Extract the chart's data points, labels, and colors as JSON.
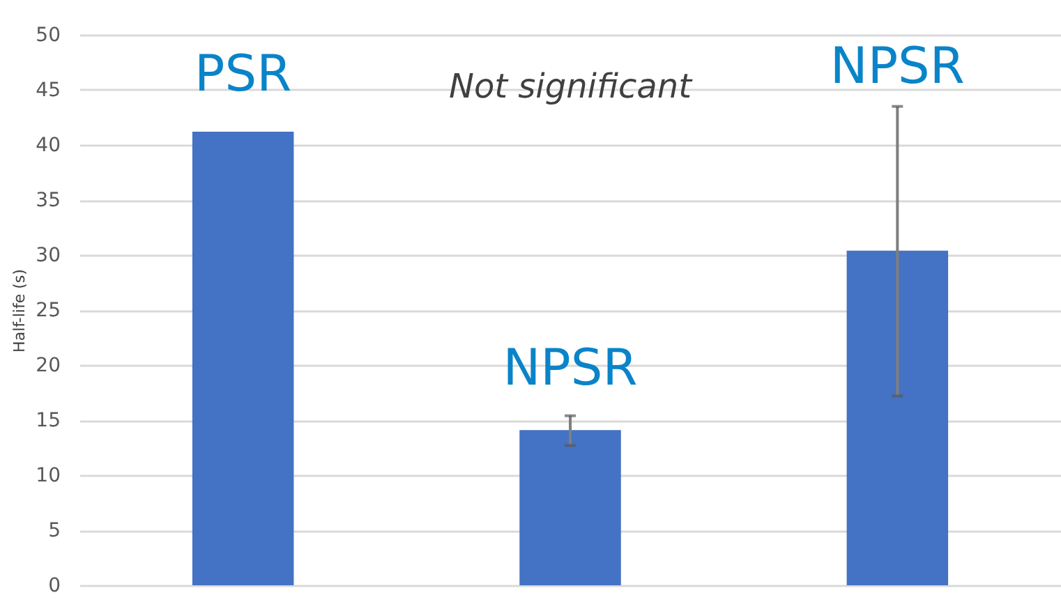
{
  "chart_data": {
    "type": "bar",
    "ylabel": "Half-life (s)",
    "categories": [
      null,
      null,
      null
    ],
    "values": [
      41.2,
      14.1,
      30.4
    ],
    "color": "#4472c4",
    "errors": [
      null,
      [
        12.7,
        15.4
      ],
      [
        17.2,
        43.5
      ]
    ],
    "ylim": [
      0,
      50
    ],
    "yticks": [
      0,
      5,
      10,
      15,
      20,
      25,
      30,
      35,
      40,
      45,
      50
    ],
    "grid": "y",
    "annotations": [
      "PSR",
      "Not significant",
      "NPSR",
      "NPSR"
    ]
  }
}
